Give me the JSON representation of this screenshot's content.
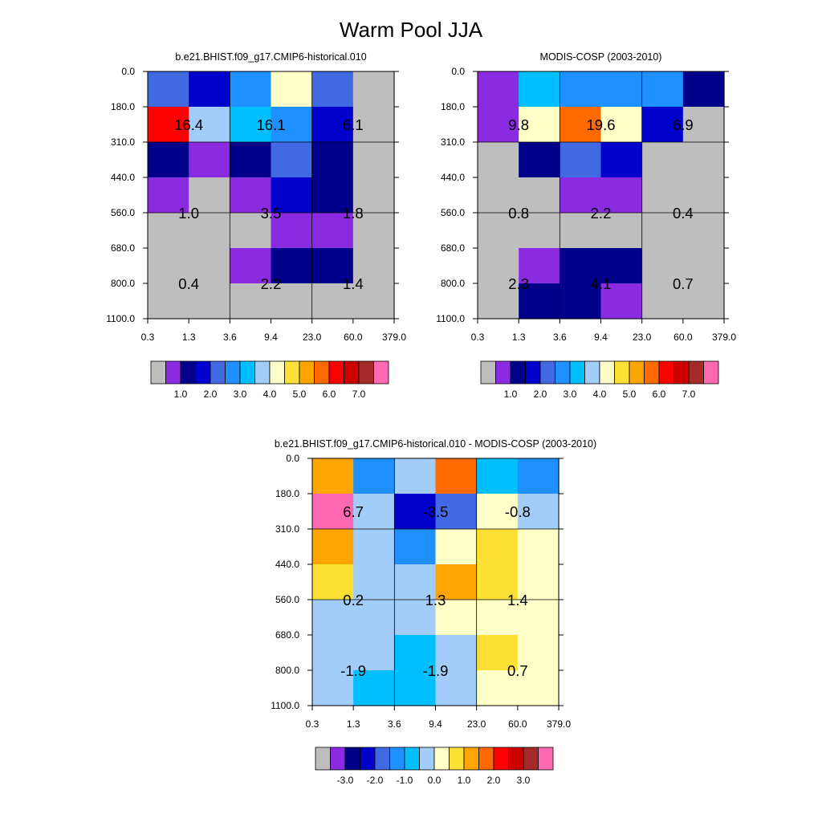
{
  "figure": {
    "title": "Warm Pool JJA"
  },
  "colors": {
    "missing": "#bebebe",
    "abs_palette": [
      "#8a2be2",
      "#00008b",
      "#0000cd",
      "#4169e1",
      "#1e90ff",
      "#00bfff",
      "#a2cdfa",
      "#ffffc8",
      "#ffe135",
      "#ffa500",
      "#ff6a00",
      "#ff0000",
      "#cd0000",
      "#a52a2a",
      "#ff69b4"
    ],
    "diff_palette": [
      "#8a2be2",
      "#00008b",
      "#0000cd",
      "#4169e1",
      "#1e90ff",
      "#00bfff",
      "#a2cdfa",
      "#ffffc8",
      "#ffe135",
      "#ffa500",
      "#ff6a00",
      "#ff0000",
      "#cd0000",
      "#a52a2a",
      "#ff69b4"
    ]
  },
  "chart_data": [
    {
      "id": "model",
      "type": "heatmap",
      "title": "b.e21.BHIST.f09_g17.CMIP6-historical.010",
      "x_tick_labels": [
        "0.3",
        "1.3",
        "3.6",
        "9.4",
        "23.0",
        "60.0",
        "379.0"
      ],
      "y_tick_labels": [
        "0.0",
        "180.0",
        "310.0",
        "440.0",
        "560.0",
        "680.0",
        "800.0",
        "1100.0"
      ],
      "cell_colors": [
        [
          "#4169e1",
          "#0000cd",
          "#1e90ff",
          "#ffffc8",
          "#4169e1",
          "#bebebe"
        ],
        [
          "#ff0000",
          "#a2cdfa",
          "#00bfff",
          "#1e90ff",
          "#0000cd",
          "#bebebe"
        ],
        [
          "#00008b",
          "#8a2be2",
          "#00008b",
          "#4169e1",
          "#00008b",
          "#bebebe"
        ],
        [
          "#8a2be2",
          "#bebebe",
          "#8a2be2",
          "#0000cd",
          "#00008b",
          "#bebebe"
        ],
        [
          "#bebebe",
          "#bebebe",
          "#bebebe",
          "#8a2be2",
          "#8a2be2",
          "#bebebe"
        ],
        [
          "#bebebe",
          "#bebebe",
          "#8a2be2",
          "#00008b",
          "#00008b",
          "#bebebe"
        ],
        [
          "#bebebe",
          "#bebebe",
          "#bebebe",
          "#bebebe",
          "#bebebe",
          "#bebebe"
        ]
      ],
      "grid_cols": [
        0,
        2,
        4,
        6
      ],
      "grid_rows": [
        0,
        2,
        4,
        7
      ],
      "box_labels": [
        {
          "col": 1,
          "row": 1.5,
          "text": "16.4"
        },
        {
          "col": 3,
          "row": 1.5,
          "text": "16.1"
        },
        {
          "col": 5,
          "row": 1.5,
          "text": "6.1"
        },
        {
          "col": 1,
          "row": 4,
          "text": "1.0"
        },
        {
          "col": 3,
          "row": 4,
          "text": "3.5"
        },
        {
          "col": 5,
          "row": 4,
          "text": "1.8"
        },
        {
          "col": 1,
          "row": 6,
          "text": "0.4"
        },
        {
          "col": 3,
          "row": 6,
          "text": "2.2"
        },
        {
          "col": 5,
          "row": 6,
          "text": "1.4"
        }
      ],
      "colorbar": {
        "palette": "abs",
        "labels": [
          "1.0",
          "2.0",
          "3.0",
          "4.0",
          "5.0",
          "6.0",
          "7.0"
        ]
      }
    },
    {
      "id": "obs",
      "type": "heatmap",
      "title": "MODIS-COSP (2003-2010)",
      "x_tick_labels": [
        "0.3",
        "1.3",
        "3.6",
        "9.4",
        "23.0",
        "60.0",
        "379.0"
      ],
      "y_tick_labels": [
        "0.0",
        "180.0",
        "310.0",
        "440.0",
        "560.0",
        "680.0",
        "800.0",
        "1100.0"
      ],
      "cell_colors": [
        [
          "#8a2be2",
          "#00bfff",
          "#1e90ff",
          "#1e90ff",
          "#1e90ff",
          "#00008b"
        ],
        [
          "#8a2be2",
          "#ffffc8",
          "#ff6a00",
          "#ffffc8",
          "#0000cd",
          "#bebebe"
        ],
        [
          "#bebebe",
          "#00008b",
          "#4169e1",
          "#0000cd",
          "#bebebe",
          "#bebebe"
        ],
        [
          "#bebebe",
          "#bebebe",
          "#8a2be2",
          "#8a2be2",
          "#bebebe",
          "#bebebe"
        ],
        [
          "#bebebe",
          "#bebebe",
          "#bebebe",
          "#bebebe",
          "#bebebe",
          "#bebebe"
        ],
        [
          "#bebebe",
          "#8a2be2",
          "#00008b",
          "#00008b",
          "#bebebe",
          "#bebebe"
        ],
        [
          "#bebebe",
          "#00008b",
          "#00008b",
          "#8a2be2",
          "#bebebe",
          "#bebebe"
        ]
      ],
      "grid_cols": [
        0,
        2,
        4,
        6
      ],
      "grid_rows": [
        0,
        2,
        4,
        7
      ],
      "box_labels": [
        {
          "col": 1,
          "row": 1.5,
          "text": "9.8"
        },
        {
          "col": 3,
          "row": 1.5,
          "text": "19.6"
        },
        {
          "col": 5,
          "row": 1.5,
          "text": "6.9"
        },
        {
          "col": 1,
          "row": 4,
          "text": "0.8"
        },
        {
          "col": 3,
          "row": 4,
          "text": "2.2"
        },
        {
          "col": 5,
          "row": 4,
          "text": "0.4"
        },
        {
          "col": 1,
          "row": 6,
          "text": "2.3"
        },
        {
          "col": 3,
          "row": 6,
          "text": "4.1"
        },
        {
          "col": 5,
          "row": 6,
          "text": "0.7"
        }
      ],
      "colorbar": {
        "palette": "abs",
        "labels": [
          "1.0",
          "2.0",
          "3.0",
          "4.0",
          "5.0",
          "6.0",
          "7.0"
        ]
      }
    },
    {
      "id": "diff",
      "type": "heatmap",
      "title": "b.e21.BHIST.f09_g17.CMIP6-historical.010 - MODIS-COSP (2003-2010)",
      "x_tick_labels": [
        "0.3",
        "1.3",
        "3.6",
        "9.4",
        "23.0",
        "60.0",
        "379.0"
      ],
      "y_tick_labels": [
        "0.0",
        "180.0",
        "310.0",
        "440.0",
        "560.0",
        "680.0",
        "800.0",
        "1100.0"
      ],
      "cell_colors": [
        [
          "#ffa500",
          "#1e90ff",
          "#a2cdfa",
          "#ff6a00",
          "#00bfff",
          "#1e90ff"
        ],
        [
          "#ff69b4",
          "#a2cdfa",
          "#0000cd",
          "#4169e1",
          "#ffffc8",
          "#a2cdfa"
        ],
        [
          "#ffa500",
          "#a2cdfa",
          "#1e90ff",
          "#ffffc8",
          "#ffe135",
          "#ffffc8"
        ],
        [
          "#ffe135",
          "#a2cdfa",
          "#a2cdfa",
          "#ffa500",
          "#ffe135",
          "#ffffc8"
        ],
        [
          "#a2cdfa",
          "#a2cdfa",
          "#a2cdfa",
          "#ffffc8",
          "#ffffc8",
          "#ffffc8"
        ],
        [
          "#a2cdfa",
          "#a2cdfa",
          "#00bfff",
          "#a2cdfa",
          "#ffe135",
          "#ffffc8"
        ],
        [
          "#a2cdfa",
          "#00bfff",
          "#00bfff",
          "#a2cdfa",
          "#ffffc8",
          "#ffffc8"
        ]
      ],
      "grid_cols": [
        0,
        2,
        4,
        6
      ],
      "grid_rows": [
        0,
        2,
        4,
        7
      ],
      "box_labels": [
        {
          "col": 1,
          "row": 1.5,
          "text": "6.7"
        },
        {
          "col": 3,
          "row": 1.5,
          "text": "-3.5"
        },
        {
          "col": 5,
          "row": 1.5,
          "text": "-0.8"
        },
        {
          "col": 1,
          "row": 4,
          "text": "0.2"
        },
        {
          "col": 3,
          "row": 4,
          "text": "1.3"
        },
        {
          "col": 5,
          "row": 4,
          "text": "1.4"
        },
        {
          "col": 1,
          "row": 6,
          "text": "-1.9"
        },
        {
          "col": 3,
          "row": 6,
          "text": "-1.9"
        },
        {
          "col": 5,
          "row": 6,
          "text": "0.7"
        }
      ],
      "colorbar": {
        "palette": "diff",
        "labels": [
          "-3.0",
          "-2.0",
          "-1.0",
          "0.0",
          "1.0",
          "2.0",
          "3.0"
        ]
      }
    }
  ]
}
